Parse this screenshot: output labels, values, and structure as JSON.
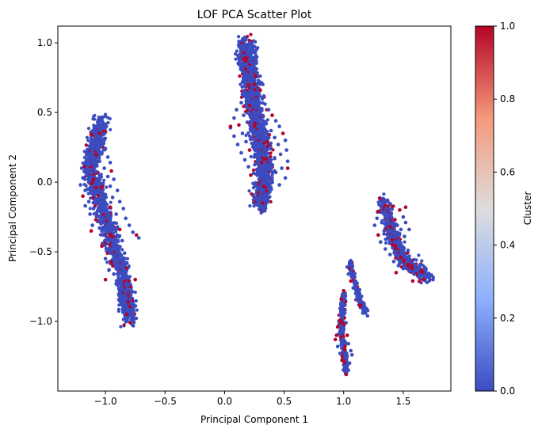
{
  "chart_data": {
    "type": "scatter",
    "title": "LOF PCA Scatter Plot",
    "xlabel": "Principal Component 1",
    "ylabel": "Principal Component 2",
    "xlim": [
      -1.4,
      1.9
    ],
    "ylim": [
      -1.5,
      1.12
    ],
    "xticks": [
      -1.0,
      -0.5,
      0.0,
      0.5,
      1.0,
      1.5
    ],
    "xtick_labels": [
      "−1.0",
      "−0.5",
      "0.0",
      "0.5",
      "1.0",
      "1.5"
    ],
    "yticks": [
      -1.0,
      -0.5,
      0.0,
      0.5,
      1.0
    ],
    "ytick_labels": [
      "−1.0",
      "−0.5",
      "0.0",
      "0.5",
      "1.0"
    ],
    "grid": false,
    "colormap": "coolwarm",
    "color_low": "#3b4cc0",
    "color_high": "#b40426",
    "colorbar": {
      "label": "Cluster",
      "range": [
        0.0,
        1.0
      ],
      "ticks": [
        0.0,
        0.2,
        0.4,
        0.6,
        0.8,
        1.0
      ],
      "tick_labels": [
        "0.0",
        "0.2",
        "0.4",
        "0.6",
        "0.8",
        "1.0"
      ]
    },
    "groups": [
      {
        "x": [
          -1.22,
          -0.72
        ],
        "y": [
          -1.02,
          0.45
        ],
        "outlier_fraction": 0.12
      },
      {
        "x": [
          0.03,
          0.54
        ],
        "y": [
          -0.18,
          1.01
        ],
        "outlier_fraction": 0.12
      },
      {
        "x": [
          0.92,
          1.22
        ],
        "y": [
          -1.38,
          -0.55
        ],
        "outlier_fraction": 0.15
      },
      {
        "x": [
          1.2,
          1.76
        ],
        "y": [
          -0.73,
          -0.12
        ],
        "outlier_fraction": 0.18
      }
    ],
    "points": [
      [
        -1.04,
        0.44,
        0
      ],
      [
        -1.03,
        0.41,
        0
      ],
      [
        -1.06,
        0.39,
        0
      ],
      [
        -1.05,
        0.35,
        1
      ],
      [
        -1.02,
        0.34,
        0
      ],
      [
        -1.08,
        0.33,
        0
      ],
      [
        -1.01,
        0.3,
        0
      ],
      [
        -1.07,
        0.29,
        0
      ],
      [
        -1.04,
        0.27,
        0
      ],
      [
        -1.1,
        0.25,
        0
      ],
      [
        -1.0,
        0.24,
        0
      ],
      [
        -1.03,
        0.21,
        0
      ],
      [
        -1.08,
        0.2,
        1
      ],
      [
        -1.12,
        0.18,
        0
      ],
      [
        -0.98,
        0.18,
        0
      ],
      [
        -1.05,
        0.15,
        0
      ],
      [
        -1.14,
        0.14,
        0
      ],
      [
        -0.96,
        0.14,
        0
      ],
      [
        -1.09,
        0.12,
        0
      ],
      [
        -1.18,
        0.11,
        1
      ],
      [
        -1.2,
        0.1,
        0
      ],
      [
        -1.01,
        0.1,
        0
      ],
      [
        -1.12,
        0.08,
        0
      ],
      [
        -0.95,
        0.08,
        1
      ],
      [
        -1.16,
        0.06,
        0
      ],
      [
        -1.05,
        0.05,
        0
      ],
      [
        -0.98,
        0.04,
        0
      ],
      [
        -1.19,
        0.03,
        0
      ],
      [
        -1.1,
        0.02,
        1
      ],
      [
        -0.93,
        0.02,
        0
      ],
      [
        -1.14,
        0.0,
        0
      ],
      [
        -1.02,
        -0.01,
        0
      ],
      [
        -1.21,
        -0.02,
        0
      ],
      [
        -0.96,
        -0.03,
        0
      ],
      [
        -1.08,
        -0.04,
        1
      ],
      [
        -1.17,
        -0.06,
        0
      ],
      [
        -0.9,
        -0.06,
        0
      ],
      [
        -1.12,
        -0.08,
        0
      ],
      [
        -1.0,
        -0.09,
        0
      ],
      [
        -1.19,
        -0.1,
        1
      ],
      [
        -0.94,
        -0.11,
        0
      ],
      [
        -1.06,
        -0.12,
        0
      ],
      [
        -1.14,
        -0.14,
        0
      ],
      [
        -0.88,
        -0.14,
        0
      ],
      [
        -1.02,
        -0.15,
        0
      ],
      [
        -1.17,
        -0.17,
        0
      ],
      [
        -0.96,
        -0.18,
        1
      ],
      [
        -1.1,
        -0.19,
        0
      ],
      [
        -0.85,
        -0.19,
        0
      ],
      [
        -1.04,
        -0.21,
        0
      ],
      [
        -1.13,
        -0.23,
        0
      ],
      [
        -0.91,
        -0.23,
        0
      ],
      [
        -0.98,
        -0.25,
        0
      ],
      [
        -1.08,
        -0.27,
        1
      ],
      [
        -0.83,
        -0.26,
        0
      ],
      [
        -1.01,
        -0.29,
        0
      ],
      [
        -0.94,
        -0.3,
        0
      ],
      [
        -1.11,
        -0.31,
        0
      ],
      [
        -0.8,
        -0.31,
        0
      ],
      [
        -1.05,
        -0.33,
        0
      ],
      [
        -0.88,
        -0.34,
        1
      ],
      [
        -0.97,
        -0.35,
        0
      ],
      [
        -0.77,
        -0.36,
        0
      ],
      [
        -1.02,
        -0.38,
        0
      ],
      [
        -0.91,
        -0.39,
        0
      ],
      [
        -0.74,
        -0.38,
        1
      ],
      [
        -0.99,
        -0.42,
        0
      ],
      [
        -0.86,
        -0.42,
        0
      ],
      [
        -0.94,
        -0.45,
        0
      ],
      [
        -1.03,
        -0.46,
        1
      ],
      [
        -0.89,
        -0.48,
        0
      ],
      [
        -0.96,
        -0.5,
        0
      ],
      [
        -0.84,
        -0.51,
        0
      ],
      [
        -0.93,
        -0.53,
        0
      ],
      [
        -1.0,
        -0.55,
        0
      ],
      [
        -0.88,
        -0.56,
        0
      ],
      [
        -0.95,
        -0.58,
        1
      ],
      [
        -0.82,
        -0.58,
        0
      ],
      [
        -0.91,
        -0.61,
        0
      ],
      [
        -0.97,
        -0.63,
        0
      ],
      [
        -0.86,
        -0.64,
        0
      ],
      [
        -0.93,
        -0.66,
        0
      ],
      [
        -0.89,
        -0.69,
        0
      ],
      [
        -0.84,
        -0.71,
        1
      ],
      [
        -0.91,
        -0.73,
        0
      ],
      [
        -0.86,
        -0.76,
        0
      ],
      [
        -0.88,
        -0.79,
        0
      ],
      [
        -0.83,
        -0.82,
        0
      ],
      [
        -0.86,
        -0.85,
        0
      ],
      [
        -0.81,
        -0.86,
        1
      ],
      [
        -0.84,
        -0.89,
        0
      ],
      [
        -0.8,
        -0.92,
        0
      ],
      [
        -0.82,
        -0.95,
        1
      ],
      [
        -0.79,
        -1.01,
        1
      ],
      [
        -0.75,
        -0.7,
        1
      ],
      [
        -0.72,
        -0.4,
        0
      ],
      [
        -1.12,
        -0.35,
        1
      ],
      [
        -1.0,
        -0.7,
        1
      ],
      [
        0.18,
        0.98,
        0
      ],
      [
        0.17,
        0.95,
        0
      ],
      [
        0.2,
        0.91,
        0
      ],
      [
        0.16,
        0.88,
        1
      ],
      [
        0.22,
        0.86,
        0
      ],
      [
        0.19,
        0.83,
        0
      ],
      [
        0.24,
        0.8,
        0
      ],
      [
        0.18,
        0.78,
        0
      ],
      [
        0.26,
        0.76,
        1
      ],
      [
        0.21,
        0.74,
        0
      ],
      [
        0.15,
        0.72,
        0
      ],
      [
        0.28,
        0.71,
        0
      ],
      [
        0.23,
        0.68,
        0
      ],
      [
        0.17,
        0.66,
        0
      ],
      [
        0.3,
        0.66,
        1
      ],
      [
        0.25,
        0.63,
        0
      ],
      [
        0.19,
        0.61,
        0
      ],
      [
        0.32,
        0.61,
        0
      ],
      [
        0.27,
        0.58,
        0
      ],
      [
        0.14,
        0.57,
        0
      ],
      [
        0.34,
        0.56,
        0
      ],
      [
        0.21,
        0.55,
        1
      ],
      [
        0.3,
        0.53,
        0
      ],
      [
        0.1,
        0.52,
        0
      ],
      [
        0.37,
        0.52,
        0
      ],
      [
        0.24,
        0.5,
        0
      ],
      [
        0.16,
        0.48,
        0
      ],
      [
        0.4,
        0.48,
        1
      ],
      [
        0.32,
        0.47,
        0
      ],
      [
        0.08,
        0.46,
        0
      ],
      [
        0.27,
        0.45,
        0
      ],
      [
        0.43,
        0.44,
        0
      ],
      [
        0.19,
        0.43,
        0
      ],
      [
        0.35,
        0.42,
        0
      ],
      [
        0.12,
        0.41,
        1
      ],
      [
        0.46,
        0.4,
        0
      ],
      [
        0.29,
        0.39,
        0
      ],
      [
        0.05,
        0.39,
        0
      ],
      [
        0.39,
        0.37,
        0
      ],
      [
        0.22,
        0.37,
        0
      ],
      [
        0.49,
        0.35,
        1
      ],
      [
        0.15,
        0.35,
        0
      ],
      [
        0.33,
        0.34,
        0
      ],
      [
        0.42,
        0.32,
        0
      ],
      [
        0.08,
        0.33,
        0
      ],
      [
        0.26,
        0.31,
        0
      ],
      [
        0.51,
        0.3,
        0
      ],
      [
        0.36,
        0.29,
        1
      ],
      [
        0.18,
        0.29,
        0
      ],
      [
        0.45,
        0.27,
        0
      ],
      [
        0.11,
        0.27,
        0
      ],
      [
        0.3,
        0.26,
        0
      ],
      [
        0.39,
        0.24,
        0
      ],
      [
        0.52,
        0.23,
        0
      ],
      [
        0.21,
        0.23,
        1
      ],
      [
        0.14,
        0.21,
        0
      ],
      [
        0.34,
        0.21,
        0
      ],
      [
        0.47,
        0.2,
        0
      ],
      [
        0.25,
        0.18,
        0
      ],
      [
        0.42,
        0.17,
        0
      ],
      [
        0.17,
        0.16,
        0
      ],
      [
        0.53,
        0.15,
        0
      ],
      [
        0.31,
        0.14,
        1
      ],
      [
        0.37,
        0.12,
        0
      ],
      [
        0.2,
        0.11,
        0
      ],
      [
        0.48,
        0.1,
        0
      ],
      [
        0.27,
        0.09,
        0
      ],
      [
        0.43,
        0.07,
        0
      ],
      [
        0.34,
        0.05,
        0
      ],
      [
        0.22,
        0.05,
        1
      ],
      [
        0.51,
        0.03,
        0
      ],
      [
        0.29,
        0.02,
        0
      ],
      [
        0.4,
        0.01,
        0
      ],
      [
        0.24,
        -0.01,
        0
      ],
      [
        0.46,
        -0.02,
        0
      ],
      [
        0.33,
        -0.03,
        1
      ],
      [
        0.27,
        -0.06,
        0
      ],
      [
        0.38,
        -0.07,
        0
      ],
      [
        0.3,
        -0.1,
        0
      ],
      [
        0.35,
        -0.12,
        0
      ],
      [
        0.32,
        -0.15,
        1
      ],
      [
        0.29,
        -0.17,
        0
      ],
      [
        0.05,
        0.4,
        1
      ],
      [
        0.53,
        0.1,
        1
      ],
      [
        0.2,
        0.7,
        1
      ],
      [
        0.25,
        0.4,
        1
      ],
      [
        1.05,
        -0.58,
        0
      ],
      [
        1.03,
        -0.61,
        0
      ],
      [
        1.07,
        -0.63,
        0
      ],
      [
        1.04,
        -0.66,
        0
      ],
      [
        1.09,
        -0.68,
        0
      ],
      [
        1.06,
        -0.71,
        1
      ],
      [
        1.11,
        -0.73,
        0
      ],
      [
        1.08,
        -0.76,
        0
      ],
      [
        1.13,
        -0.78,
        0
      ],
      [
        1.1,
        -0.8,
        0
      ],
      [
        1.15,
        -0.82,
        0
      ],
      [
        1.12,
        -0.85,
        0
      ],
      [
        1.17,
        -0.87,
        0
      ],
      [
        1.14,
        -0.89,
        1
      ],
      [
        1.19,
        -0.91,
        0
      ],
      [
        1.16,
        -0.94,
        0
      ],
      [
        1.2,
        -0.96,
        0
      ],
      [
        1.0,
        -0.78,
        1
      ],
      [
        0.98,
        -0.84,
        1
      ],
      [
        1.01,
        -0.94,
        0
      ],
      [
        0.97,
        -0.99,
        1
      ],
      [
        1.02,
        -1.01,
        0
      ],
      [
        0.95,
        -1.04,
        1
      ],
      [
        1.0,
        -1.06,
        0
      ],
      [
        0.96,
        -1.09,
        0
      ],
      [
        1.03,
        -1.1,
        1
      ],
      [
        0.93,
        -1.13,
        1
      ],
      [
        0.99,
        -1.15,
        0
      ],
      [
        1.04,
        -1.16,
        0
      ],
      [
        0.95,
        -1.18,
        0
      ],
      [
        1.01,
        -1.2,
        1
      ],
      [
        1.06,
        -1.21,
        0
      ],
      [
        0.97,
        -1.23,
        0
      ],
      [
        1.03,
        -1.25,
        0
      ],
      [
        0.99,
        -1.28,
        1
      ],
      [
        1.05,
        -1.3,
        0
      ],
      [
        1.01,
        -1.32,
        0
      ],
      [
        1.04,
        -1.35,
        0
      ],
      [
        1.07,
        -1.24,
        0
      ],
      [
        0.94,
        -1.1,
        1
      ],
      [
        1.33,
        -0.14,
        0
      ],
      [
        1.31,
        -0.17,
        0
      ],
      [
        1.36,
        -0.19,
        0
      ],
      [
        1.29,
        -0.21,
        1
      ],
      [
        1.34,
        -0.23,
        0
      ],
      [
        1.4,
        -0.23,
        0
      ],
      [
        1.28,
        -0.26,
        0
      ],
      [
        1.37,
        -0.27,
        0
      ],
      [
        1.43,
        -0.27,
        1
      ],
      [
        1.32,
        -0.29,
        0
      ],
      [
        1.47,
        -0.2,
        1
      ],
      [
        1.5,
        -0.25,
        0
      ],
      [
        1.45,
        -0.31,
        0
      ],
      [
        1.52,
        -0.29,
        0
      ],
      [
        1.26,
        -0.31,
        0
      ],
      [
        1.39,
        -0.32,
        1
      ],
      [
        1.48,
        -0.34,
        0
      ],
      [
        1.34,
        -0.35,
        0
      ],
      [
        1.55,
        -0.34,
        0
      ],
      [
        1.42,
        -0.37,
        0
      ],
      [
        1.29,
        -0.38,
        1
      ],
      [
        1.51,
        -0.39,
        0
      ],
      [
        1.37,
        -0.4,
        0
      ],
      [
        1.46,
        -0.42,
        0
      ],
      [
        1.31,
        -0.43,
        0
      ],
      [
        1.41,
        -0.45,
        1
      ],
      [
        1.49,
        -0.46,
        0
      ],
      [
        1.35,
        -0.48,
        0
      ],
      [
        1.44,
        -0.5,
        0
      ],
      [
        1.54,
        -0.49,
        0
      ],
      [
        1.39,
        -0.52,
        0
      ],
      [
        1.48,
        -0.54,
        1
      ],
      [
        1.42,
        -0.57,
        0
      ],
      [
        1.53,
        -0.57,
        0
      ],
      [
        1.46,
        -0.6,
        0
      ],
      [
        1.57,
        -0.6,
        1
      ],
      [
        1.5,
        -0.62,
        0
      ],
      [
        1.61,
        -0.62,
        0
      ],
      [
        1.55,
        -0.64,
        0
      ],
      [
        1.65,
        -0.64,
        1
      ],
      [
        1.59,
        -0.66,
        0
      ],
      [
        1.69,
        -0.66,
        0
      ],
      [
        1.63,
        -0.68,
        0
      ],
      [
        1.72,
        -0.68,
        0
      ],
      [
        1.67,
        -0.7,
        1
      ],
      [
        1.75,
        -0.7,
        0
      ],
      [
        1.7,
        -0.72,
        0
      ],
      [
        1.58,
        -0.71,
        1
      ],
      [
        1.44,
        -0.65,
        1
      ],
      [
        1.52,
        -0.18,
        1
      ]
    ]
  }
}
